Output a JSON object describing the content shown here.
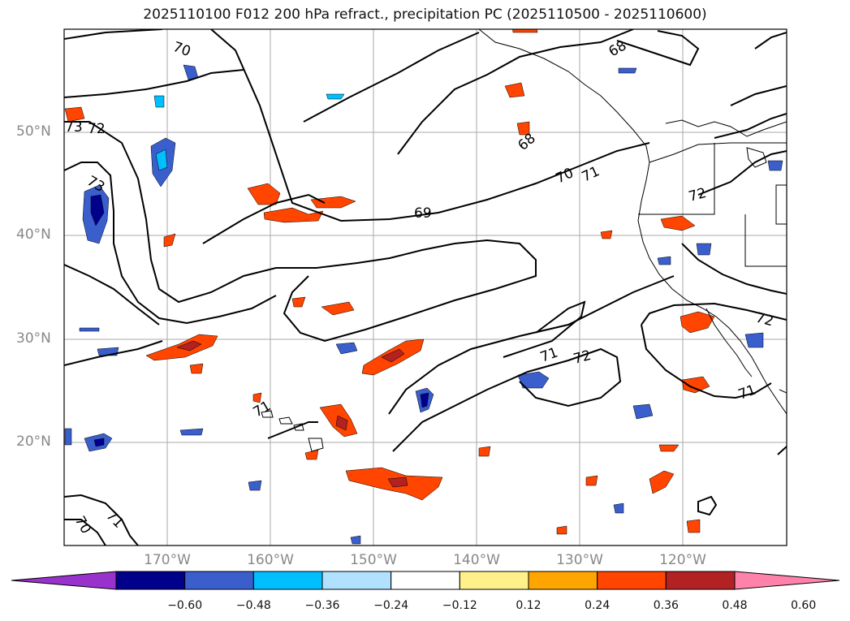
{
  "title": "2025110100 F012 200 hPa refract., precipitation PC (2025110500 - 2025110600)",
  "lat_labels": [
    "50°N",
    "40°N",
    "30°N",
    "20°N"
  ],
  "lon_labels": [
    "170°W",
    "160°W",
    "150°W",
    "140°W",
    "130°W",
    "120°W"
  ],
  "contour_labels": [
    "70",
    "73",
    "72",
    "73",
    "69",
    "68",
    "68",
    "70",
    "71",
    "72",
    "71",
    "72",
    "71",
    "72",
    "71",
    "70",
    "71"
  ],
  "colorbar": {
    "ticks": [
      "−0.60",
      "−0.48",
      "−0.36",
      "−0.24",
      "−0.12",
      "0.12",
      "0.24",
      "0.36",
      "0.48",
      "0.60"
    ],
    "colors": [
      "#9932cc",
      "#00008b",
      "#3a5fcd",
      "#00bfff",
      "#b0e2ff",
      "#ffffff",
      "#fff08a",
      "#ffa500",
      "#ff4500",
      "#b22222",
      "#ff82ab"
    ]
  },
  "map_extent": {
    "lon_min": -180,
    "lon_max": -110,
    "lat_min": 10,
    "lat_max": 60
  }
}
